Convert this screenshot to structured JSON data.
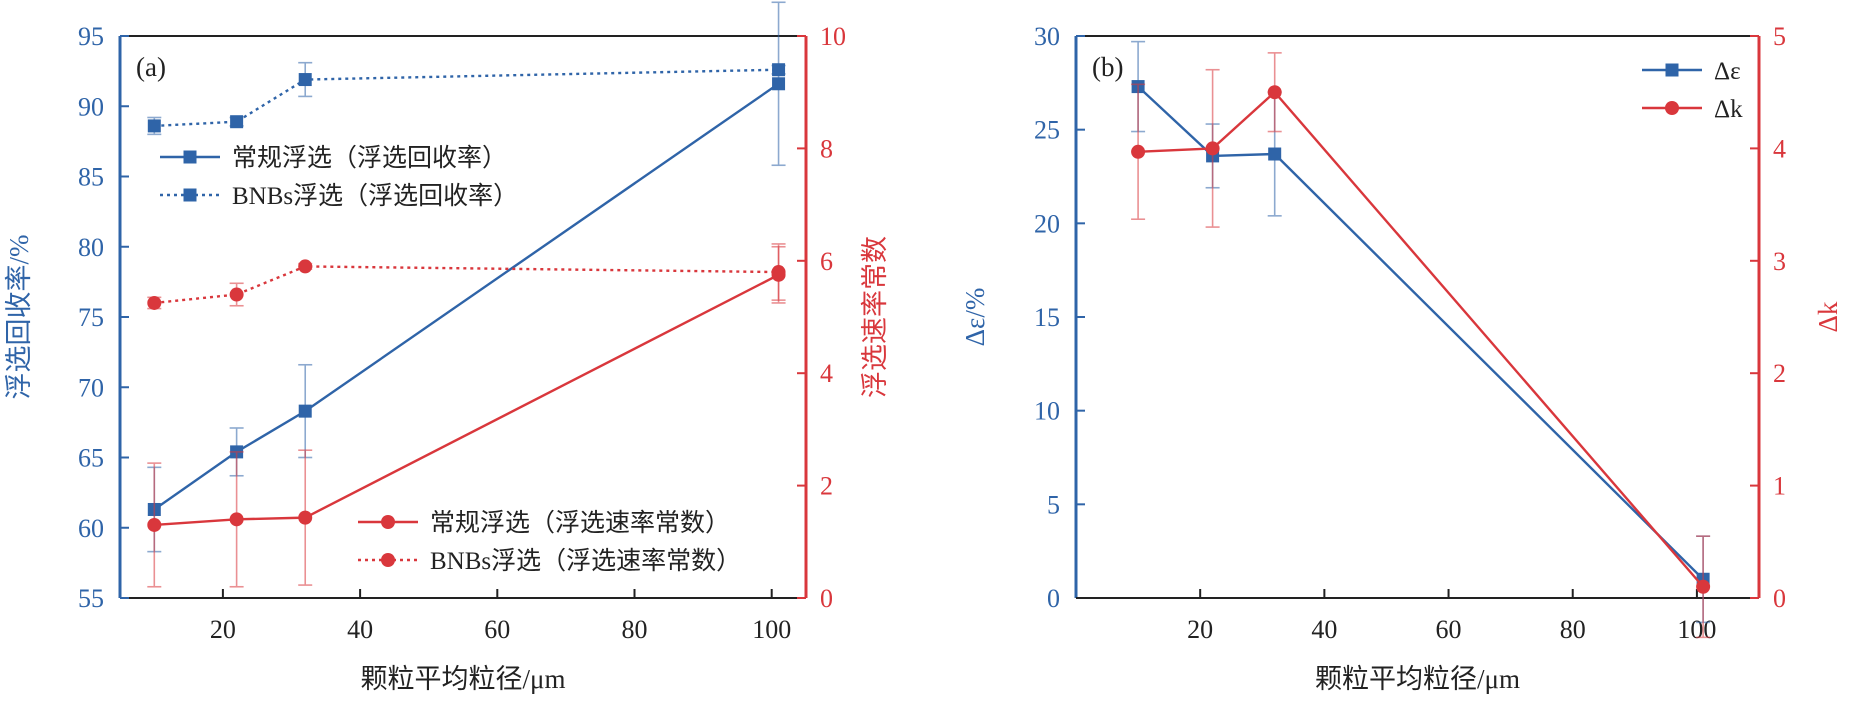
{
  "colors": {
    "blue": "#2F64A8",
    "red": "#D9373C",
    "axis": "#222222",
    "text": "#222222"
  },
  "chart_data": [
    {
      "panel": "(a)",
      "type": "line",
      "xlabel": "颗粒平均粒径/μm",
      "ylabel_left": "浮选回收率/%",
      "ylabel_right": "浮选速率常数",
      "x_ticks": [
        20,
        40,
        60,
        80,
        100
      ],
      "yleft_ticks": [
        55,
        60,
        65,
        70,
        75,
        80,
        85,
        90,
        95
      ],
      "yright_ticks": [
        0,
        2,
        4,
        6,
        8,
        10
      ],
      "xlim": [
        5,
        105
      ],
      "ylim_left": [
        55,
        95
      ],
      "ylim_right": [
        0,
        10
      ],
      "legend_placement": [
        "upper-left",
        "lower-right"
      ],
      "series": [
        {
          "name": "常规浮选（浮选回收率）",
          "axis": "left",
          "color": "blue",
          "style": "solid",
          "marker": "square",
          "x": [
            10,
            22,
            32,
            101
          ],
          "y": [
            61.3,
            65.4,
            68.3,
            91.6
          ],
          "err": [
            3.0,
            1.7,
            3.3,
            5.8
          ]
        },
        {
          "name": "BNBs浮选（浮选回收率）",
          "axis": "left",
          "color": "blue",
          "style": "dotted",
          "marker": "square",
          "x": [
            10,
            22,
            32,
            101
          ],
          "y": [
            88.6,
            88.9,
            91.9,
            92.6
          ],
          "err": [
            0.6,
            0.3,
            1.2,
            0.3
          ]
        },
        {
          "name": "常规浮选（浮选速率常数）",
          "axis": "right",
          "color": "red",
          "style": "solid",
          "marker": "circle",
          "x": [
            10,
            22,
            32,
            101
          ],
          "y": [
            1.3,
            1.4,
            1.43,
            5.75
          ],
          "err": [
            1.1,
            1.2,
            1.2,
            0.5
          ]
        },
        {
          "name": "BNBs浮选（浮选速率常数）",
          "axis": "right",
          "color": "red",
          "style": "dotted",
          "marker": "circle",
          "x": [
            10,
            22,
            32,
            101
          ],
          "y": [
            5.25,
            5.4,
            5.9,
            5.8
          ],
          "err": [
            0.1,
            0.2,
            0.05,
            0.5
          ]
        }
      ]
    },
    {
      "panel": "(b)",
      "type": "line",
      "xlabel": "颗粒平均粒径/μm",
      "ylabel_left": "Δε/%",
      "ylabel_right": "Δk",
      "x_ticks": [
        20,
        40,
        60,
        80,
        100
      ],
      "yleft_ticks": [
        0,
        5,
        10,
        15,
        20,
        25,
        30
      ],
      "yright_ticks": [
        0,
        1,
        2,
        3,
        4,
        5
      ],
      "xlim": [
        0,
        110
      ],
      "ylim_left": [
        0,
        30
      ],
      "ylim_right": [
        0,
        5
      ],
      "legend_placement": [
        "upper-right"
      ],
      "series": [
        {
          "name": "Δε",
          "axis": "left",
          "color": "blue",
          "style": "solid",
          "marker": "square",
          "x": [
            10,
            22,
            32,
            101
          ],
          "y": [
            27.3,
            23.6,
            23.7,
            1.0
          ],
          "err": [
            2.4,
            1.7,
            3.3,
            2.3
          ]
        },
        {
          "name": "Δk",
          "axis": "right",
          "color": "red",
          "style": "solid",
          "marker": "circle",
          "x": [
            10,
            22,
            32,
            101
          ],
          "y": [
            3.97,
            4.0,
            4.5,
            0.1
          ],
          "err": [
            0.6,
            0.7,
            0.35,
            0.45
          ]
        }
      ]
    }
  ]
}
